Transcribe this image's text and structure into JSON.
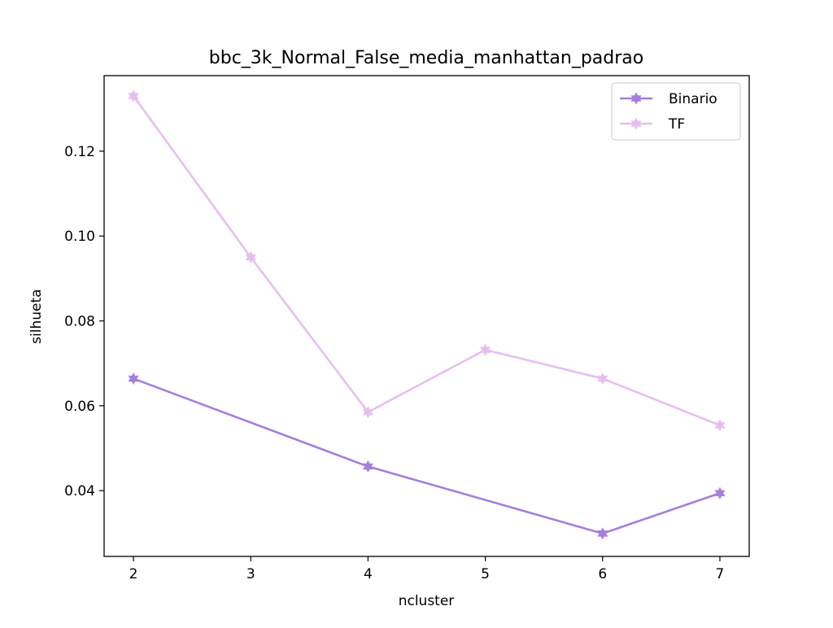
{
  "chart_data": {
    "type": "line",
    "title": "bbc_3k_Normal_False_media_manhattan_padrao",
    "xlabel": "ncluster",
    "ylabel": "silhueta",
    "x": [
      2,
      3,
      4,
      5,
      6,
      7
    ],
    "xlim": [
      1.75,
      7.25
    ],
    "ylim": [
      0.0245,
      0.1378
    ],
    "xticks": [
      2,
      3,
      4,
      5,
      6,
      7
    ],
    "yticks": [
      0.04,
      0.06,
      0.08,
      0.1,
      0.12
    ],
    "ytick_labels": [
      "0.04",
      "0.06",
      "0.08",
      "0.10",
      "0.12"
    ],
    "xtick_labels": [
      "2",
      "3",
      "4",
      "5",
      "6",
      "7"
    ],
    "grid": false,
    "legend_position": "top-right",
    "series": [
      {
        "name": "Binario",
        "color": "#a57fdb",
        "marker": "star",
        "x": [
          2,
          4,
          6,
          7
        ],
        "values": [
          0.0664,
          0.0457,
          0.0299,
          0.0394
        ]
      },
      {
        "name": "TF",
        "color": "#e6bff0",
        "marker": "star",
        "x": [
          2,
          3,
          4,
          5,
          6,
          7
        ],
        "values": [
          0.133,
          0.095,
          0.0585,
          0.0732,
          0.0664,
          0.0554
        ]
      }
    ]
  }
}
